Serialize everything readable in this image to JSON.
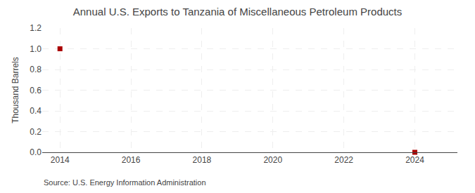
{
  "chart_data": {
    "type": "scatter",
    "title": "Annual U.S. Exports to Tanzania of Miscellaneous Petroleum Products",
    "ylabel": "Thousand Barrels",
    "annotations": [
      "Source: U.S. Energy Information Administration"
    ],
    "x": [
      2014,
      2024
    ],
    "values": [
      1.0,
      0.0
    ],
    "color": "#aa0000",
    "marker": "square",
    "xlim": [
      2013.5,
      2025.2
    ],
    "ylim": [
      0.0,
      1.2
    ],
    "xticks": [
      2014,
      2016,
      2018,
      2020,
      2022,
      2024
    ],
    "yticks": [
      {
        "value": 0.0,
        "label": "0.0"
      },
      0.2,
      0.4,
      0.6,
      0.8,
      {
        "value": 1.0,
        "label": "1.0"
      },
      1.2
    ],
    "grid": true
  }
}
